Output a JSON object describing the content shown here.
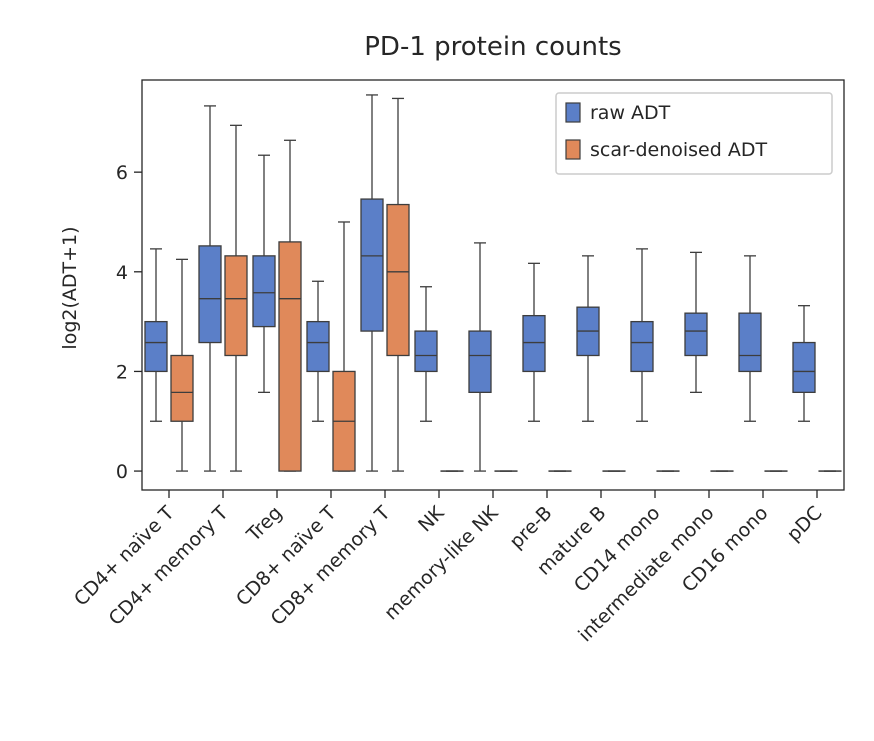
{
  "chart_data": {
    "type": "box",
    "title": "PD-1 protein counts",
    "xlabel": "",
    "ylabel": "log2(ADT+1)",
    "ylim": [
      -0.38,
      7.85
    ],
    "yticks": [
      0,
      2,
      4,
      6
    ],
    "grid": false,
    "legend_position": "top-right",
    "categories": [
      "CD4+ naïve T",
      "CD4+ memory T",
      "Treg",
      "CD8+ naïve T",
      "CD8+ memory T",
      "NK",
      "memory-like NK",
      "pre-B",
      "mature B",
      "CD14 mono",
      "intermediate mono",
      "CD16 mono",
      "pDC"
    ],
    "series": [
      {
        "name": "raw ADT",
        "color": "#4c72b0",
        "fill": "#5b7fc8",
        "boxes": [
          {
            "whislo": 1.0,
            "q1": 2.0,
            "med": 2.58,
            "q3": 3.0,
            "whishi": 4.46
          },
          {
            "whislo": 0.0,
            "q1": 2.58,
            "med": 3.46,
            "q3": 4.52,
            "whishi": 7.33
          },
          {
            "whislo": 1.58,
            "q1": 2.9,
            "med": 3.58,
            "q3": 4.32,
            "whishi": 6.34
          },
          {
            "whislo": 1.0,
            "q1": 2.0,
            "med": 2.58,
            "q3": 3.0,
            "whishi": 3.81
          },
          {
            "whislo": 0.0,
            "q1": 2.81,
            "med": 4.32,
            "q3": 5.46,
            "whishi": 7.55
          },
          {
            "whislo": 1.0,
            "q1": 2.0,
            "med": 2.32,
            "q3": 2.81,
            "whishi": 3.7
          },
          {
            "whislo": 0.0,
            "q1": 1.58,
            "med": 2.32,
            "q3": 2.81,
            "whishi": 4.58
          },
          {
            "whislo": 1.0,
            "q1": 2.0,
            "med": 2.58,
            "q3": 3.12,
            "whishi": 4.17
          },
          {
            "whislo": 1.0,
            "q1": 2.32,
            "med": 2.81,
            "q3": 3.29,
            "whishi": 4.32
          },
          {
            "whislo": 1.0,
            "q1": 2.0,
            "med": 2.58,
            "q3": 3.0,
            "whishi": 4.46
          },
          {
            "whislo": 1.58,
            "q1": 2.32,
            "med": 2.81,
            "q3": 3.17,
            "whishi": 4.39
          },
          {
            "whislo": 1.0,
            "q1": 2.0,
            "med": 2.32,
            "q3": 3.17,
            "whishi": 4.32
          },
          {
            "whislo": 1.0,
            "q1": 1.58,
            "med": 2.0,
            "q3": 2.58,
            "whishi": 3.32
          }
        ]
      },
      {
        "name": "scar-denoised ADT",
        "color": "#dd8452",
        "fill": "#e0895a",
        "boxes": [
          {
            "whislo": 0.0,
            "q1": 1.0,
            "med": 1.58,
            "q3": 2.32,
            "whishi": 4.25
          },
          {
            "whislo": 0.0,
            "q1": 2.32,
            "med": 3.46,
            "q3": 4.32,
            "whishi": 6.94
          },
          {
            "whislo": 0.0,
            "q1": 0.0,
            "med": 3.46,
            "q3": 4.6,
            "whishi": 6.64
          },
          {
            "whislo": 0.0,
            "q1": 0.0,
            "med": 1.0,
            "q3": 2.0,
            "whishi": 5.0
          },
          {
            "whislo": 0.0,
            "q1": 2.32,
            "med": 4.0,
            "q3": 5.35,
            "whishi": 7.48
          },
          {
            "whislo": 0.0,
            "q1": 0.0,
            "med": 0.0,
            "q3": 0.0,
            "whishi": 0.0
          },
          {
            "whislo": 0.0,
            "q1": 0.0,
            "med": 0.0,
            "q3": 0.0,
            "whishi": 0.0
          },
          {
            "whislo": 0.0,
            "q1": 0.0,
            "med": 0.0,
            "q3": 0.0,
            "whishi": 0.0
          },
          {
            "whislo": 0.0,
            "q1": 0.0,
            "med": 0.0,
            "q3": 0.0,
            "whishi": 0.0
          },
          {
            "whislo": 0.0,
            "q1": 0.0,
            "med": 0.0,
            "q3": 0.0,
            "whishi": 0.0
          },
          {
            "whislo": 0.0,
            "q1": 0.0,
            "med": 0.0,
            "q3": 0.0,
            "whishi": 0.0
          },
          {
            "whislo": 0.0,
            "q1": 0.0,
            "med": 0.0,
            "q3": 0.0,
            "whishi": 0.0
          },
          {
            "whislo": 0.0,
            "q1": 0.0,
            "med": 0.0,
            "q3": 0.0,
            "whishi": 0.0
          }
        ]
      }
    ]
  }
}
